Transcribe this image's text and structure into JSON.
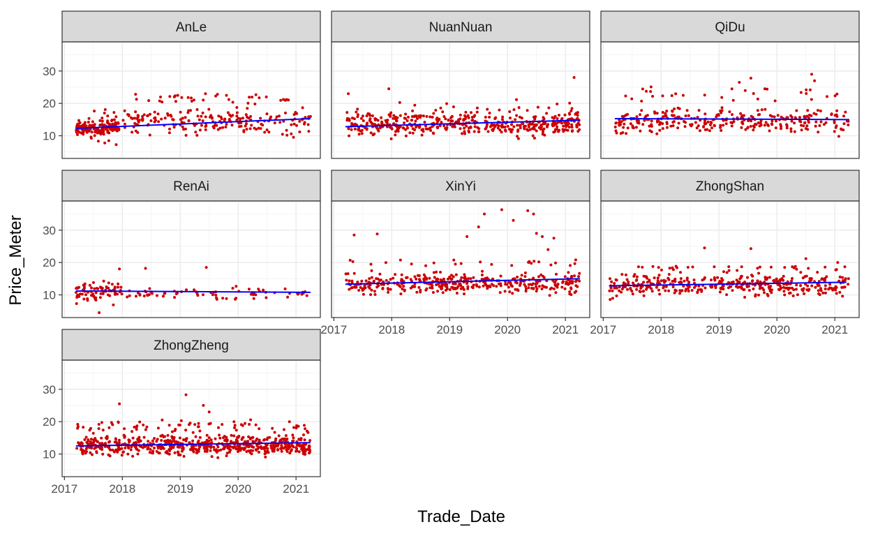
{
  "chart_data": {
    "type": "scatter",
    "xlabel": "Trade_Date",
    "ylabel": "Price_Meter",
    "x_ticks": [
      "2017",
      "2018",
      "2019",
      "2020",
      "2021"
    ],
    "y_ticks": [
      "10",
      "20",
      "30"
    ],
    "xlim": [
      2016.96,
      2021.42
    ],
    "ylim": [
      3,
      39
    ],
    "point_color": "#cc0000",
    "trend_color": "#0000ff",
    "strip_fill": "#d9d9d9",
    "grid": true,
    "panels": [
      {
        "name": "AnLe",
        "trend": [
          [
            2017.2,
            12.3
          ],
          [
            2021.25,
            15.3
          ]
        ],
        "clusters": [
          {
            "x": [
              2017.2,
              2017.95
            ],
            "y": [
              9.5,
              15.5
            ],
            "n": 150
          },
          {
            "x": [
              2017.2,
              2017.95
            ],
            "y": [
              5,
              21
            ],
            "n": 30
          },
          {
            "x": [
              2018.0,
              2021.25
            ],
            "y": [
              9,
              20
            ],
            "n": 200
          },
          {
            "x": [
              2018.2,
              2021.0
            ],
            "y": [
              19,
              24
            ],
            "n": 35
          }
        ]
      },
      {
        "name": "NuanNuan",
        "trend": [
          [
            2017.2,
            12.8
          ],
          [
            2021.25,
            14.8
          ]
        ],
        "clusters": [
          {
            "x": [
              2017.2,
              2021.25
            ],
            "y": [
              8.5,
              18.5
            ],
            "n": 420
          },
          {
            "x": [
              2017.2,
              2021.25
            ],
            "y": [
              7.5,
              23.5
            ],
            "n": 60
          }
        ],
        "points": [
          [
            2021.15,
            28.0
          ],
          [
            2017.95,
            24.5
          ],
          [
            2017.25,
            23.0
          ]
        ]
      },
      {
        "name": "QiDu",
        "trend": [
          [
            2017.2,
            15.3
          ],
          [
            2021.25,
            15.0
          ]
        ],
        "clusters": [
          {
            "x": [
              2017.2,
              2021.25
            ],
            "y": [
              9.5,
              19.5
            ],
            "n": 300
          },
          {
            "x": [
              2017.3,
              2021.2
            ],
            "y": [
              19,
              26
            ],
            "n": 30
          }
        ],
        "points": [
          [
            2020.6,
            29.0
          ],
          [
            2019.55,
            27.8
          ],
          [
            2019.35,
            26.5
          ],
          [
            2020.65,
            27.0
          ]
        ]
      },
      {
        "name": "RenAi",
        "trend": [
          [
            2017.2,
            11.2
          ],
          [
            2021.25,
            10.8
          ]
        ],
        "clusters": [
          {
            "x": [
              2017.2,
              2018.0
            ],
            "y": [
              6,
              16
            ],
            "n": 80
          },
          {
            "x": [
              2018.0,
              2021.25
            ],
            "y": [
              7.5,
              13
            ],
            "n": 70
          }
        ],
        "points": [
          [
            2017.6,
            4.5
          ],
          [
            2018.4,
            18.2
          ],
          [
            2019.45,
            18.5
          ],
          [
            2017.95,
            18.0
          ]
        ]
      },
      {
        "name": "XinYi",
        "trend": [
          [
            2017.2,
            13.3
          ],
          [
            2021.25,
            15.0
          ]
        ],
        "clusters": [
          {
            "x": [
              2017.2,
              2021.25
            ],
            "y": [
              9,
              18
            ],
            "n": 380
          },
          {
            "x": [
              2017.2,
              2021.25
            ],
            "y": [
              18,
              22
            ],
            "n": 25
          }
        ],
        "points": [
          [
            2017.35,
            28.5
          ],
          [
            2017.75,
            28.8
          ],
          [
            2019.3,
            28.0
          ],
          [
            2019.6,
            35.0
          ],
          [
            2019.9,
            36.3
          ],
          [
            2020.1,
            33.0
          ],
          [
            2020.35,
            36.0
          ],
          [
            2020.45,
            35.0
          ],
          [
            2020.5,
            29.0
          ],
          [
            2020.6,
            28.0
          ],
          [
            2020.8,
            27.5
          ],
          [
            2020.7,
            24.0
          ],
          [
            2019.5,
            31.0
          ]
        ]
      },
      {
        "name": "ZhongShan",
        "trend": [
          [
            2017.1,
            12.8
          ],
          [
            2021.2,
            13.9
          ]
        ],
        "clusters": [
          {
            "x": [
              2017.1,
              2021.25
            ],
            "y": [
              8,
              18
            ],
            "n": 380
          },
          {
            "x": [
              2017.3,
              2021.2
            ],
            "y": [
              17,
              20
            ],
            "n": 30
          }
        ],
        "points": [
          [
            2018.75,
            24.5
          ],
          [
            2019.55,
            24.3
          ],
          [
            2020.5,
            21.2
          ],
          [
            2021.05,
            20.0
          ]
        ]
      },
      {
        "name": "ZhongZheng",
        "trend": [
          [
            2017.2,
            12.5
          ],
          [
            2021.25,
            13.5
          ]
        ],
        "clusters": [
          {
            "x": [
              2017.2,
              2021.25
            ],
            "y": [
              8.5,
              17
            ],
            "n": 600
          },
          {
            "x": [
              2017.2,
              2021.25
            ],
            "y": [
              16,
              21
            ],
            "n": 70
          }
        ],
        "points": [
          [
            2019.1,
            28.3
          ],
          [
            2017.95,
            25.5
          ],
          [
            2019.4,
            25.0
          ],
          [
            2019.5,
            23.0
          ]
        ]
      }
    ]
  }
}
